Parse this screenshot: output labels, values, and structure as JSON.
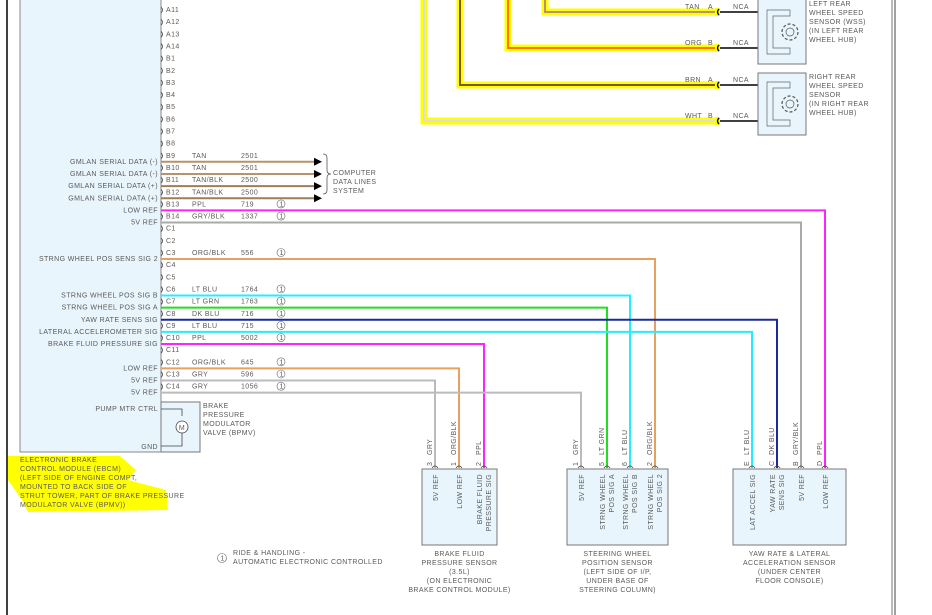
{
  "ebcm": {
    "title_lines": [
      "ELECTRONIC BRAKE",
      "CONTROL MODULE (EBCM)",
      "(LEFT SIDE OF ENGINE COMPT,",
      "MOUNTED TO BACK SIDE OF",
      "STRUT TOWER, PART OF BRAKE PRESSURE",
      "MODULATOR VALVE (BPMV))"
    ],
    "highlight_color": "#ffff00",
    "pump_label": "PUMP MTR CTRL",
    "gnd_label": "GND",
    "motor_symbol": "M",
    "bpmv_lines": [
      "BRAKE",
      "PRESSURE",
      "MODULATOR",
      "VALVE (BPMV)"
    ],
    "pins": [
      {
        "pin": "A11"
      },
      {
        "pin": "A12"
      },
      {
        "pin": "A13"
      },
      {
        "pin": "A14"
      },
      {
        "pin": "B1"
      },
      {
        "pin": "B2"
      },
      {
        "pin": "B3"
      },
      {
        "pin": "B4"
      },
      {
        "pin": "B5"
      },
      {
        "pin": "B6"
      },
      {
        "pin": "B7"
      },
      {
        "pin": "B8"
      },
      {
        "pin": "B9",
        "function": "GMLAN SERIAL DATA (-)",
        "wire": "TAN",
        "circuit": "2501",
        "color": "#b8926a"
      },
      {
        "pin": "B10",
        "function": "GMLAN SERIAL DATA (-)",
        "wire": "TAN",
        "circuit": "2501",
        "color": "#b8926a"
      },
      {
        "pin": "B11",
        "function": "GMLAN SERIAL DATA (+)",
        "wire": "TAN/BLK",
        "circuit": "2500",
        "color": "#9c7e58"
      },
      {
        "pin": "B12",
        "function": "GMLAN SERIAL DATA (+)",
        "wire": "TAN/BLK",
        "circuit": "2500",
        "color": "#9c7e58"
      },
      {
        "pin": "B13",
        "function": "LOW REF",
        "wire": "PPL",
        "circuit": "719",
        "note": "1",
        "color": "#ff22ff"
      },
      {
        "pin": "B14",
        "function": "5V REF",
        "wire": "GRY/BLK",
        "circuit": "1337",
        "note": "1",
        "color": "#aaaaaa"
      },
      {
        "pin": "C1"
      },
      {
        "pin": "C2"
      },
      {
        "pin": "C3",
        "function": "STRNG WHEEL POS SENS SIG 2",
        "wire": "ORG/BLK",
        "circuit": "556",
        "note": "1",
        "color": "#e8a060"
      },
      {
        "pin": "C4"
      },
      {
        "pin": "C5"
      },
      {
        "pin": "C6",
        "function": "STRNG WHEEL POS SIG B",
        "wire": "LT BLU",
        "circuit": "1764",
        "note": "1",
        "color": "#22eeff"
      },
      {
        "pin": "C7",
        "function": "STRNG WHEEL POS SIG A",
        "wire": "LT GRN",
        "circuit": "1763",
        "note": "1",
        "color": "#22dd22"
      },
      {
        "pin": "C8",
        "function": "YAW RATE SENS SIG",
        "wire": "DK BLU",
        "circuit": "716",
        "note": "1",
        "color": "#1a2a9a"
      },
      {
        "pin": "C9",
        "function": "LATERAL ACCELEROMETER SIG",
        "wire": "LT BLU",
        "circuit": "715",
        "note": "1",
        "color": "#22eeff"
      },
      {
        "pin": "C10",
        "function": "BRAKE FLUID PRESSURE SIG",
        "wire": "PPL",
        "circuit": "5002",
        "note": "1",
        "color": "#ff22ff"
      },
      {
        "pin": "C11"
      },
      {
        "pin": "C12",
        "function": "LOW REF",
        "wire": "ORG/BLK",
        "circuit": "645",
        "note": "1",
        "color": "#e8a060"
      },
      {
        "pin": "C13",
        "function": "5V REF",
        "wire": "GRY",
        "circuit": "596",
        "note": "1",
        "color": "#bbbbbb"
      },
      {
        "pin": "C14",
        "function": "5V REF",
        "wire": "GRY",
        "circuit": "1056",
        "note": "1",
        "color": "#bbbbbb"
      }
    ]
  },
  "data_lines_label": [
    "COMPUTER",
    "DATA LINES",
    "SYSTEM"
  ],
  "sensors": [
    {
      "id": "bfps",
      "name_lines": [
        "BRAKE FLUID",
        "PRESSURE SENSOR",
        "(3.5L)",
        "(ON ELECTRONIC",
        "BRAKE CONTROL MODULE)"
      ],
      "pins": [
        {
          "pin": "3",
          "wire": "GRY",
          "label": [
            "5V REF"
          ],
          "from": "C13"
        },
        {
          "pin": "1",
          "wire": "ORG/BLK",
          "label": [
            "LOW REF"
          ],
          "from": "C12"
        },
        {
          "pin": "2",
          "wire": "PPL",
          "label": [
            "BRAKE FLUID",
            "PRESSURE SIG"
          ],
          "from": "C10"
        }
      ]
    },
    {
      "id": "swps",
      "name_lines": [
        "STEERING WHEEL",
        "POSITION SENSOR",
        "(LEFT SIDE OF I/P,",
        "UNDER BASE OF",
        "STEERING COLUMN)"
      ],
      "pins": [
        {
          "pin": "1",
          "wire": "GRY",
          "label": [
            "5V REF"
          ],
          "from": "C14"
        },
        {
          "pin": "5",
          "wire": "LT GRN",
          "label": [
            "STRNG WHEEL",
            "POS SIG A"
          ],
          "from": "C7"
        },
        {
          "pin": "6",
          "wire": "LT BLU",
          "label": [
            "STRNG WHEEL",
            "POS SIG B"
          ],
          "from": "C6"
        },
        {
          "pin": "2",
          "wire": "ORG/BLK",
          "label": [
            "STRNG WHEEL",
            "POS SIG 2"
          ],
          "from": "C3"
        }
      ]
    },
    {
      "id": "yaw",
      "name_lines": [
        "YAW RATE & LATERAL",
        "ACCELERATION SENSOR",
        "(UNDER CENTER",
        "FLOOR CONSOLE)"
      ],
      "pins": [
        {
          "pin": "E",
          "wire": "LT BLU",
          "label": [
            "LAT ACCEL SIG"
          ],
          "from": "C9"
        },
        {
          "pin": "C",
          "wire": "DK BLU",
          "label": [
            "YAW RATE",
            "SENS SIG"
          ],
          "from": "C8"
        },
        {
          "pin": "B",
          "wire": "GRY/BLK",
          "label": [
            "5V REF"
          ],
          "from": "B14"
        },
        {
          "pin": "D",
          "wire": "PPL",
          "label": [
            "LOW REF"
          ],
          "from": "B13"
        }
      ]
    }
  ],
  "wheel_sensors": [
    {
      "name_lines": [
        "LEFT REAR",
        "WHEEL SPEED",
        "SENSOR (WSS)",
        "(IN LEFT REAR",
        "WHEEL HUB)"
      ],
      "pins": [
        {
          "wire": "TAN",
          "pin": "A",
          "nca": "NCA",
          "color": "#b8926a"
        },
        {
          "wire": "ORG",
          "pin": "B",
          "nca": "NCA",
          "color": "#ff7700"
        }
      ]
    },
    {
      "name_lines": [
        "RIGHT REAR",
        "WHEEL SPEED",
        "SENSOR",
        "(IN RIGHT REAR",
        "WHEEL HUB)"
      ],
      "pins": [
        {
          "wire": "BRN",
          "pin": "A",
          "nca": "NCA",
          "color": "#7a5a10"
        },
        {
          "wire": "WHT",
          "pin": "B",
          "nca": "NCA",
          "color": "#dddddd"
        }
      ]
    }
  ],
  "footnote": {
    "symbol": "1",
    "lines": [
      "RIDE & HANDLING -",
      "AUTOMATIC ELECTRONIC CONTROLLED"
    ]
  }
}
